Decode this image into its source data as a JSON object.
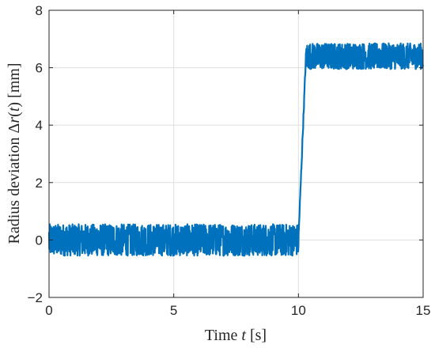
{
  "chart_data": {
    "type": "line",
    "xlabel": "Time t [s]",
    "ylabel": "Radius deviation Δr(t) [mm]",
    "xlim": [
      0,
      15
    ],
    "ylim": [
      -2,
      8
    ],
    "xticks": [
      "0",
      "5",
      "10",
      "15"
    ],
    "yticks": [
      "−2",
      "0",
      "2",
      "4",
      "6",
      "8"
    ],
    "grid": true,
    "series": [
      {
        "color": "#0072BD",
        "description_of_shape": "noisy signal around 0 mm (±0.55) from 0 to ~10 s, steep rise to ~6.4 mm between 10 and 10.3 s, then noisy around 6.4 mm (±0.45) until 15 s",
        "segments": [
          {
            "x_start": 0,
            "x_end": 10.0,
            "mean": 0.0,
            "amplitude": 0.55
          },
          {
            "x_start": 10.0,
            "x_end": 10.3,
            "mean_start": 0.0,
            "mean_end": 6.4
          },
          {
            "x_start": 10.3,
            "x_end": 15,
            "mean": 6.4,
            "amplitude": 0.45
          }
        ]
      }
    ]
  }
}
